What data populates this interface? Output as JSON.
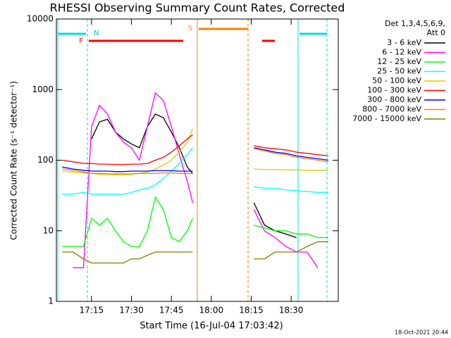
{
  "chart_data": {
    "type": "line",
    "title": "RHESSI Observing Summary Count Rates, Corrected",
    "x_label": "Start Time (16-Jul-04 17:03:42)",
    "y_label": "Corrected Count Rate (s⁻¹ detector⁻¹)",
    "legend_title": [
      "Det 1,3,4,5,6,9,",
      "Att 0"
    ],
    "footer": "18-Oct-2021 20:44",
    "flags": [
      "N",
      "F",
      "S"
    ],
    "log_y": true,
    "legend": "right",
    "xlim": [
      1021.8,
      1127.7
    ],
    "xticks": [
      {
        "value": 1035,
        "label": "17:15"
      },
      {
        "value": 1050,
        "label": "17:30"
      },
      {
        "value": 1065,
        "label": "17:45"
      },
      {
        "value": 1080,
        "label": "18:00"
      },
      {
        "value": 1095,
        "label": "18:15"
      },
      {
        "value": 1110,
        "label": "18:30"
      }
    ],
    "ylim": [
      1,
      10000
    ],
    "yticks": [
      1,
      10,
      100,
      1000,
      10000
    ],
    "x": [
      1024,
      1028,
      1032,
      1035,
      1038,
      1041,
      1044,
      1047,
      1050,
      1053,
      1056,
      1059,
      1062,
      1065,
      1068,
      1071,
      1073,
      1084,
      1096,
      1100,
      1104,
      1108,
      1112,
      1116,
      1120,
      1124
    ],
    "series": [
      {
        "name": "3 - 6 keV",
        "color": "#000000",
        "values": [
          null,
          null,
          null,
          200,
          350,
          380,
          250,
          200,
          170,
          150,
          300,
          450,
          400,
          250,
          150,
          80,
          65,
          null,
          25,
          12,
          10,
          9,
          8,
          null,
          null,
          null
        ]
      },
      {
        "name": "6 - 12 keV",
        "color": "#ff00ff",
        "values": [
          null,
          3,
          3,
          300,
          600,
          450,
          250,
          180,
          150,
          100,
          300,
          900,
          700,
          300,
          120,
          50,
          25,
          null,
          20,
          10,
          8,
          6,
          5,
          5,
          3,
          null
        ]
      },
      {
        "name": "12 - 25 keV",
        "color": "#00ff00",
        "values": [
          6,
          6,
          6,
          15,
          12,
          15,
          10,
          7,
          6,
          6,
          10,
          30,
          20,
          8,
          7,
          10,
          15,
          null,
          12,
          11,
          10,
          10,
          9,
          9,
          8,
          8
        ]
      },
      {
        "name": "25 - 50 keV",
        "color": "#00ffff",
        "values": [
          33,
          33,
          35,
          33,
          33,
          33,
          33,
          33,
          35,
          38,
          40,
          45,
          55,
          70,
          90,
          120,
          150,
          null,
          42,
          40,
          40,
          38,
          37,
          36,
          35,
          35
        ]
      },
      {
        "name": "50 - 100 keV",
        "color": "#d8d000",
        "values": [
          70,
          68,
          66,
          65,
          63,
          63,
          62,
          62,
          63,
          65,
          68,
          75,
          85,
          100,
          130,
          180,
          280,
          null,
          75,
          74,
          74,
          73,
          73,
          72,
          72,
          72
        ]
      },
      {
        "name": "100 - 300 keV",
        "color": "#ff0000",
        "values": [
          100,
          95,
          90,
          90,
          88,
          88,
          87,
          87,
          88,
          88,
          90,
          100,
          110,
          130,
          160,
          200,
          230,
          null,
          160,
          150,
          145,
          140,
          130,
          125,
          120,
          115
        ]
      },
      {
        "name": "300 - 800 keV",
        "color": "#0000ff",
        "values": [
          80,
          75,
          72,
          70,
          70,
          70,
          69,
          69,
          70,
          70,
          70,
          71,
          71,
          71,
          70,
          70,
          70,
          null,
          150,
          140,
          130,
          125,
          115,
          110,
          105,
          100
        ]
      },
      {
        "name": "800 - 7000 keV",
        "color": "#ff8000",
        "values": [
          75,
          72,
          68,
          65,
          65,
          64,
          64,
          64,
          64,
          65,
          65,
          65,
          66,
          66,
          65,
          65,
          65,
          null,
          145,
          135,
          125,
          120,
          110,
          105,
          100,
          95
        ]
      },
      {
        "name": "7000 - 15000 keV",
        "color": "#808000",
        "values": [
          5,
          5,
          4,
          3.5,
          3.5,
          3.5,
          3.5,
          3.5,
          4,
          4,
          4.5,
          5,
          5,
          5,
          5,
          5,
          5,
          null,
          4,
          4,
          5,
          5,
          5,
          6,
          7,
          7
        ]
      }
    ]
  }
}
